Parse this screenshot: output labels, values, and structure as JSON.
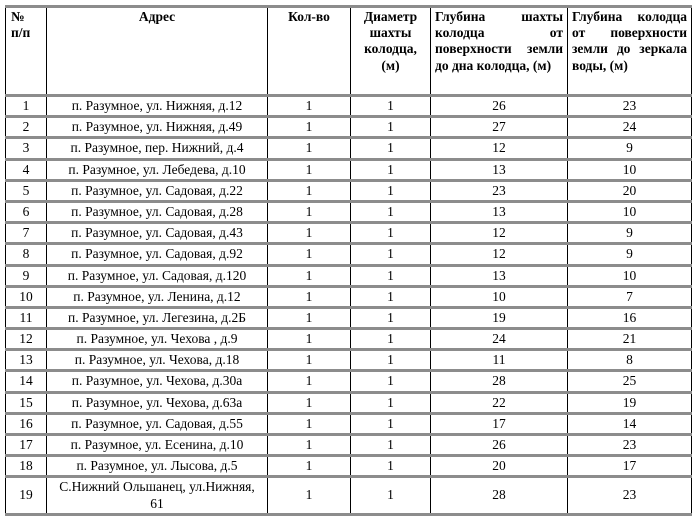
{
  "table": {
    "headers": [
      "№\nп/п",
      "Адрес",
      "Кол-во",
      "Диаметр шахты колодца, (м)",
      "Глубина шахты колодца от поверхности земли до дна колодца, (м)",
      "Глубина колодца от поверхности земли до зеркала воды, (м)"
    ],
    "rows": [
      [
        "1",
        "п. Разумное, ул. Нижняя, д.12",
        "1",
        "1",
        "26",
        "23"
      ],
      [
        "2",
        "п. Разумное, ул. Нижняя, д.49",
        "1",
        "1",
        "27",
        "24"
      ],
      [
        "3",
        "п. Разумное, пер. Нижний, д.4",
        "1",
        "1",
        "12",
        "9"
      ],
      [
        "4",
        "п. Разумное, ул. Лебедева, д.10",
        "1",
        "1",
        "13",
        "10"
      ],
      [
        "5",
        "п. Разумное, ул. Садовая, д.22",
        "1",
        "1",
        "23",
        "20"
      ],
      [
        "6",
        "п. Разумное, ул. Садовая, д.28",
        "1",
        "1",
        "13",
        "10"
      ],
      [
        "7",
        "п. Разумное, ул. Садовая, д.43",
        "1",
        "1",
        "12",
        "9"
      ],
      [
        "8",
        "п. Разумное, ул. Садовая, д.92",
        "1",
        "1",
        "12",
        "9"
      ],
      [
        "9",
        "п. Разумное, ул. Садовая, д.120",
        "1",
        "1",
        "13",
        "10"
      ],
      [
        "10",
        "п. Разумное, ул. Ленина, д.12",
        "1",
        "1",
        "10",
        "7"
      ],
      [
        "11",
        "п. Разумное, ул. Легезина, д.2Б",
        "1",
        "1",
        "19",
        "16"
      ],
      [
        "12",
        "п. Разумное, ул. Чехова , д.9",
        "1",
        "1",
        "24",
        "21"
      ],
      [
        "13",
        "п. Разумное, ул. Чехова, д.18",
        "1",
        "1",
        "11",
        "8"
      ],
      [
        "14",
        "п. Разумное, ул. Чехова, д.30а",
        "1",
        "1",
        "28",
        "25"
      ],
      [
        "15",
        "п. Разумное, ул. Чехова, д.63а",
        "1",
        "1",
        "22",
        "19"
      ],
      [
        "16",
        "п. Разумное, ул. Садовая, д.55",
        "1",
        "1",
        "17",
        "14"
      ],
      [
        "17",
        "п. Разумное, ул. Есенина, д.10",
        "1",
        "1",
        "26",
        "23"
      ],
      [
        "18",
        "п. Разумное, ул. Лысова, д.5",
        "1",
        "1",
        "20",
        "17"
      ],
      [
        "19",
        "С.Нижний Ольшанец, ул.Нижняя, 61",
        "1",
        "1",
        "28",
        "23"
      ]
    ]
  }
}
